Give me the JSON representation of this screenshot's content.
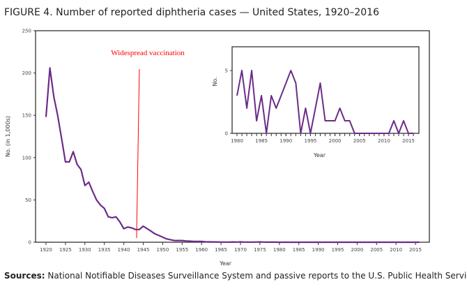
{
  "title": "FIGURE 4. Number of reported diphtheria cases — United States, 1920–2016",
  "sources_label": "Sources:",
  "sources_text": " National Notifiable Diseases Surveillance System and passive reports to the U.S. Public Health Service.",
  "colors": {
    "line": "#6b2c8a",
    "annotation": "#ff0000",
    "axis": "#333333"
  },
  "chart_data": [
    {
      "type": "line",
      "xlabel": "Year",
      "ylabel": "No. (in 1,000s)",
      "xlim": [
        1920,
        2016
      ],
      "ylim": [
        0,
        250
      ],
      "xticks": [
        1920,
        1925,
        1930,
        1935,
        1940,
        1945,
        1950,
        1955,
        1960,
        1965,
        1970,
        1975,
        1980,
        1985,
        1990,
        1995,
        2000,
        2005,
        2010,
        2015
      ],
      "yticks": [
        0,
        50,
        100,
        150,
        200,
        250
      ],
      "annotation": {
        "text": "Widespread vaccination",
        "x": 1944
      },
      "x": [
        1920,
        1921,
        1922,
        1923,
        1924,
        1925,
        1926,
        1927,
        1928,
        1929,
        1930,
        1931,
        1932,
        1933,
        1934,
        1935,
        1936,
        1937,
        1938,
        1939,
        1940,
        1941,
        1942,
        1943,
        1944,
        1945,
        1946,
        1947,
        1948,
        1949,
        1950,
        1951,
        1952,
        1953,
        1954,
        1955,
        1956,
        1957,
        1958,
        1959,
        1960,
        1961,
        1962,
        1963,
        1964,
        1965,
        1966,
        1967,
        1968,
        1969,
        1970,
        1971,
        1972,
        1973,
        1974,
        1975,
        1976,
        1977,
        1978,
        1979,
        1980,
        1981,
        1982,
        1983,
        1984,
        1985,
        1986,
        1987,
        1988,
        1989,
        1990,
        1991,
        1992,
        1993,
        1994,
        1995,
        1996,
        1997,
        1998,
        1999,
        2000,
        2001,
        2002,
        2003,
        2004,
        2005,
        2006,
        2007,
        2008,
        2009,
        2010,
        2011,
        2012,
        2013,
        2014,
        2015,
        2016
      ],
      "y": [
        148,
        206,
        172,
        150,
        123,
        95,
        95,
        107,
        92,
        86,
        67,
        71,
        60,
        50,
        44,
        40,
        30,
        29,
        30,
        24,
        16,
        18,
        17,
        15,
        15,
        19,
        16,
        13,
        10,
        8,
        6,
        4,
        3,
        2,
        2,
        2,
        1.5,
        1.2,
        0.9,
        0.9,
        0.9,
        0.6,
        0.4,
        0.3,
        0.3,
        0.2,
        0.2,
        0.2,
        0.3,
        0.2,
        0.4,
        0.2,
        0.15,
        0.2,
        0.27,
        0.3,
        0.13,
        0.08,
        0.08,
        0.06,
        0.003,
        0.005,
        0.002,
        0.005,
        0.001,
        0.003,
        0,
        0.003,
        0.002,
        0.003,
        0.004,
        0.005,
        0.004,
        0,
        0.002,
        0,
        0.002,
        0.004,
        0.001,
        0.001,
        0.001,
        0.002,
        0.001,
        0.001,
        0,
        0,
        0,
        0,
        0,
        0,
        0,
        0,
        0.001,
        0,
        0.001,
        0,
        0
      ]
    },
    {
      "type": "line",
      "xlabel": "Year",
      "ylabel": "No.",
      "xlim": [
        1980,
        2016
      ],
      "ylim": [
        0,
        5
      ],
      "xticks": [
        1980,
        1985,
        1990,
        1995,
        2000,
        2005,
        2010,
        2015
      ],
      "yticks": [
        0,
        5
      ],
      "x": [
        1980,
        1981,
        1982,
        1983,
        1984,
        1985,
        1986,
        1987,
        1988,
        1989,
        1990,
        1991,
        1992,
        1993,
        1994,
        1995,
        1996,
        1997,
        1998,
        1999,
        2000,
        2001,
        2002,
        2003,
        2004,
        2005,
        2006,
        2007,
        2008,
        2009,
        2010,
        2011,
        2012,
        2013,
        2014,
        2015,
        2016
      ],
      "y": [
        3,
        5,
        2,
        5,
        1,
        3,
        0,
        3,
        2,
        3,
        4,
        5,
        4,
        0,
        2,
        0,
        2,
        4,
        1,
        1,
        1,
        2,
        1,
        1,
        0,
        0,
        0,
        0,
        0,
        0,
        0,
        0,
        1,
        0,
        1,
        0,
        0
      ]
    }
  ]
}
